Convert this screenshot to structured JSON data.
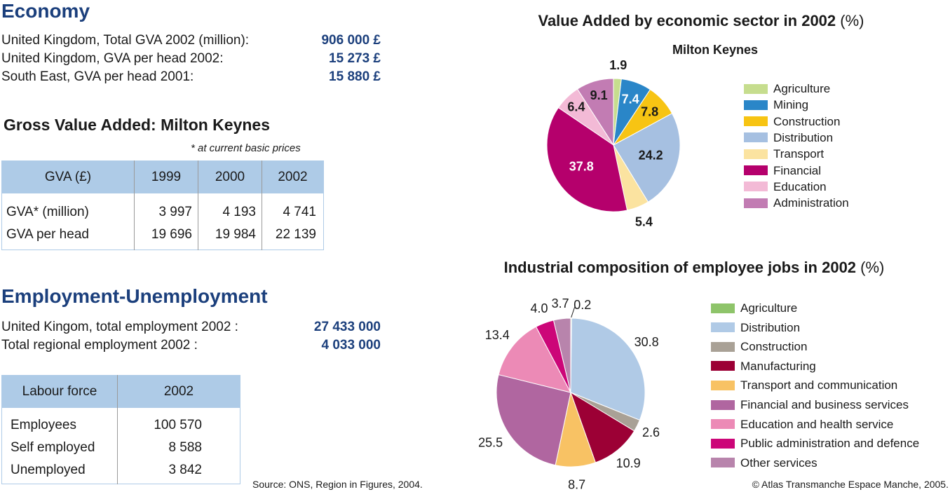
{
  "economy": {
    "title": "Economy",
    "stats": [
      {
        "label": "United Kingdom, Total GVA 2002 (million):",
        "value": "906 000 £"
      },
      {
        "label": "United Kingdom, GVA per head 2002:",
        "value": "15 273 £"
      },
      {
        "label": "South East, GVA per head 2001:",
        "value": "15 880 £"
      }
    ]
  },
  "gva": {
    "title": "Gross Value Added: Milton Keynes",
    "note": "* at current basic prices",
    "headers": [
      "GVA (£)",
      "1999",
      "2000",
      "2002"
    ],
    "rows": [
      [
        "GVA* (million)",
        "3 997",
        "4 193",
        "4 741"
      ],
      [
        "GVA per head",
        "19 696",
        "19 984",
        "22 139"
      ]
    ]
  },
  "employment": {
    "title": "Employment-Unemployment",
    "stats": [
      {
        "label": "United Kingom, total employment 2002 :",
        "value": "27 433 000"
      },
      {
        "label": "Total regional employment 2002 :",
        "value": "4 033 000"
      }
    ]
  },
  "labour": {
    "headers": [
      "Labour force",
      "2002"
    ],
    "rows": [
      [
        "Employees",
        "100 570"
      ],
      [
        "Self employed",
        "8 588"
      ],
      [
        "Unemployed",
        "3 842"
      ]
    ]
  },
  "footer": {
    "source": "Source: ONS, Region in Figures, 2004.",
    "copyright": "© Atlas Transmanche Espace Manche, 2005."
  },
  "chart_data": [
    {
      "type": "pie",
      "title": "Value Added by economic sector in 2002",
      "title_unit": "(%)",
      "subtitle": "Milton Keynes",
      "legend_position": "right",
      "slices": [
        {
          "label": "Agriculture",
          "value": 1.9,
          "color": "#c6dd8e",
          "value_label": "1.9"
        },
        {
          "label": "Mining",
          "value": 7.4,
          "color": "#2a86c8",
          "value_label": "7.4"
        },
        {
          "label": "Construction",
          "value": 7.8,
          "color": "#f7c413",
          "value_label": "7.8"
        },
        {
          "label": "Distribution",
          "value": 24.2,
          "color": "#a6c0e1",
          "value_label": "24.2"
        },
        {
          "label": "Transport",
          "value": 5.4,
          "color": "#fbe3a0",
          "value_label": "5.4"
        },
        {
          "label": "Financial",
          "value": 37.8,
          "color": "#b5006c",
          "value_label": "37.8"
        },
        {
          "label": "Education",
          "value": 6.4,
          "color": "#f3bad6",
          "value_label": "6.4"
        },
        {
          "label": "Administration",
          "value": 9.1,
          "color": "#c27cb3",
          "value_label": "9.1"
        }
      ]
    },
    {
      "type": "pie",
      "title": "Industrial composition of employee jobs in 2002",
      "title_unit": "(%)",
      "legend_position": "right",
      "slices": [
        {
          "label": "Agriculture",
          "value": 0.2,
          "color": "#8ec46a",
          "value_label": "0.2"
        },
        {
          "label": "Distribution",
          "value": 30.8,
          "color": "#b0cae6",
          "value_label": "30.8"
        },
        {
          "label": "Construction",
          "value": 2.6,
          "color": "#a9a196",
          "value_label": "2.6"
        },
        {
          "label": "Manufacturing",
          "value": 10.9,
          "color": "#9c0035",
          "value_label": "10.9"
        },
        {
          "label": "Transport and communication",
          "value": 8.7,
          "color": "#f8c264",
          "value_label": "8.7"
        },
        {
          "label": "Financial and business services",
          "value": 25.5,
          "color": "#b066a0",
          "value_label": "25.5"
        },
        {
          "label": "Education and health service",
          "value": 13.4,
          "color": "#ec8ab6",
          "value_label": "13.4"
        },
        {
          "label": "Public administration and defence",
          "value": 4.0,
          "color": "#cc0678",
          "value_label": "4.0"
        },
        {
          "label": "Other services",
          "value": 3.7,
          "color": "#b884ac",
          "value_label": "3.7"
        }
      ]
    }
  ]
}
